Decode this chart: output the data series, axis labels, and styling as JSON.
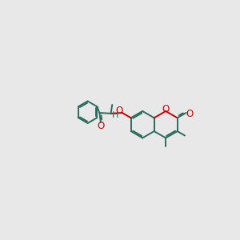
{
  "bg_color": "#e8e8e8",
  "bond_color": "#2d6b5e",
  "heteroatom_color": "#cc0000",
  "line_width": 1.4,
  "figsize": [
    3.0,
    3.0
  ],
  "dpi": 100,
  "xlim": [
    0,
    10
  ],
  "ylim": [
    2.5,
    7.5
  ]
}
